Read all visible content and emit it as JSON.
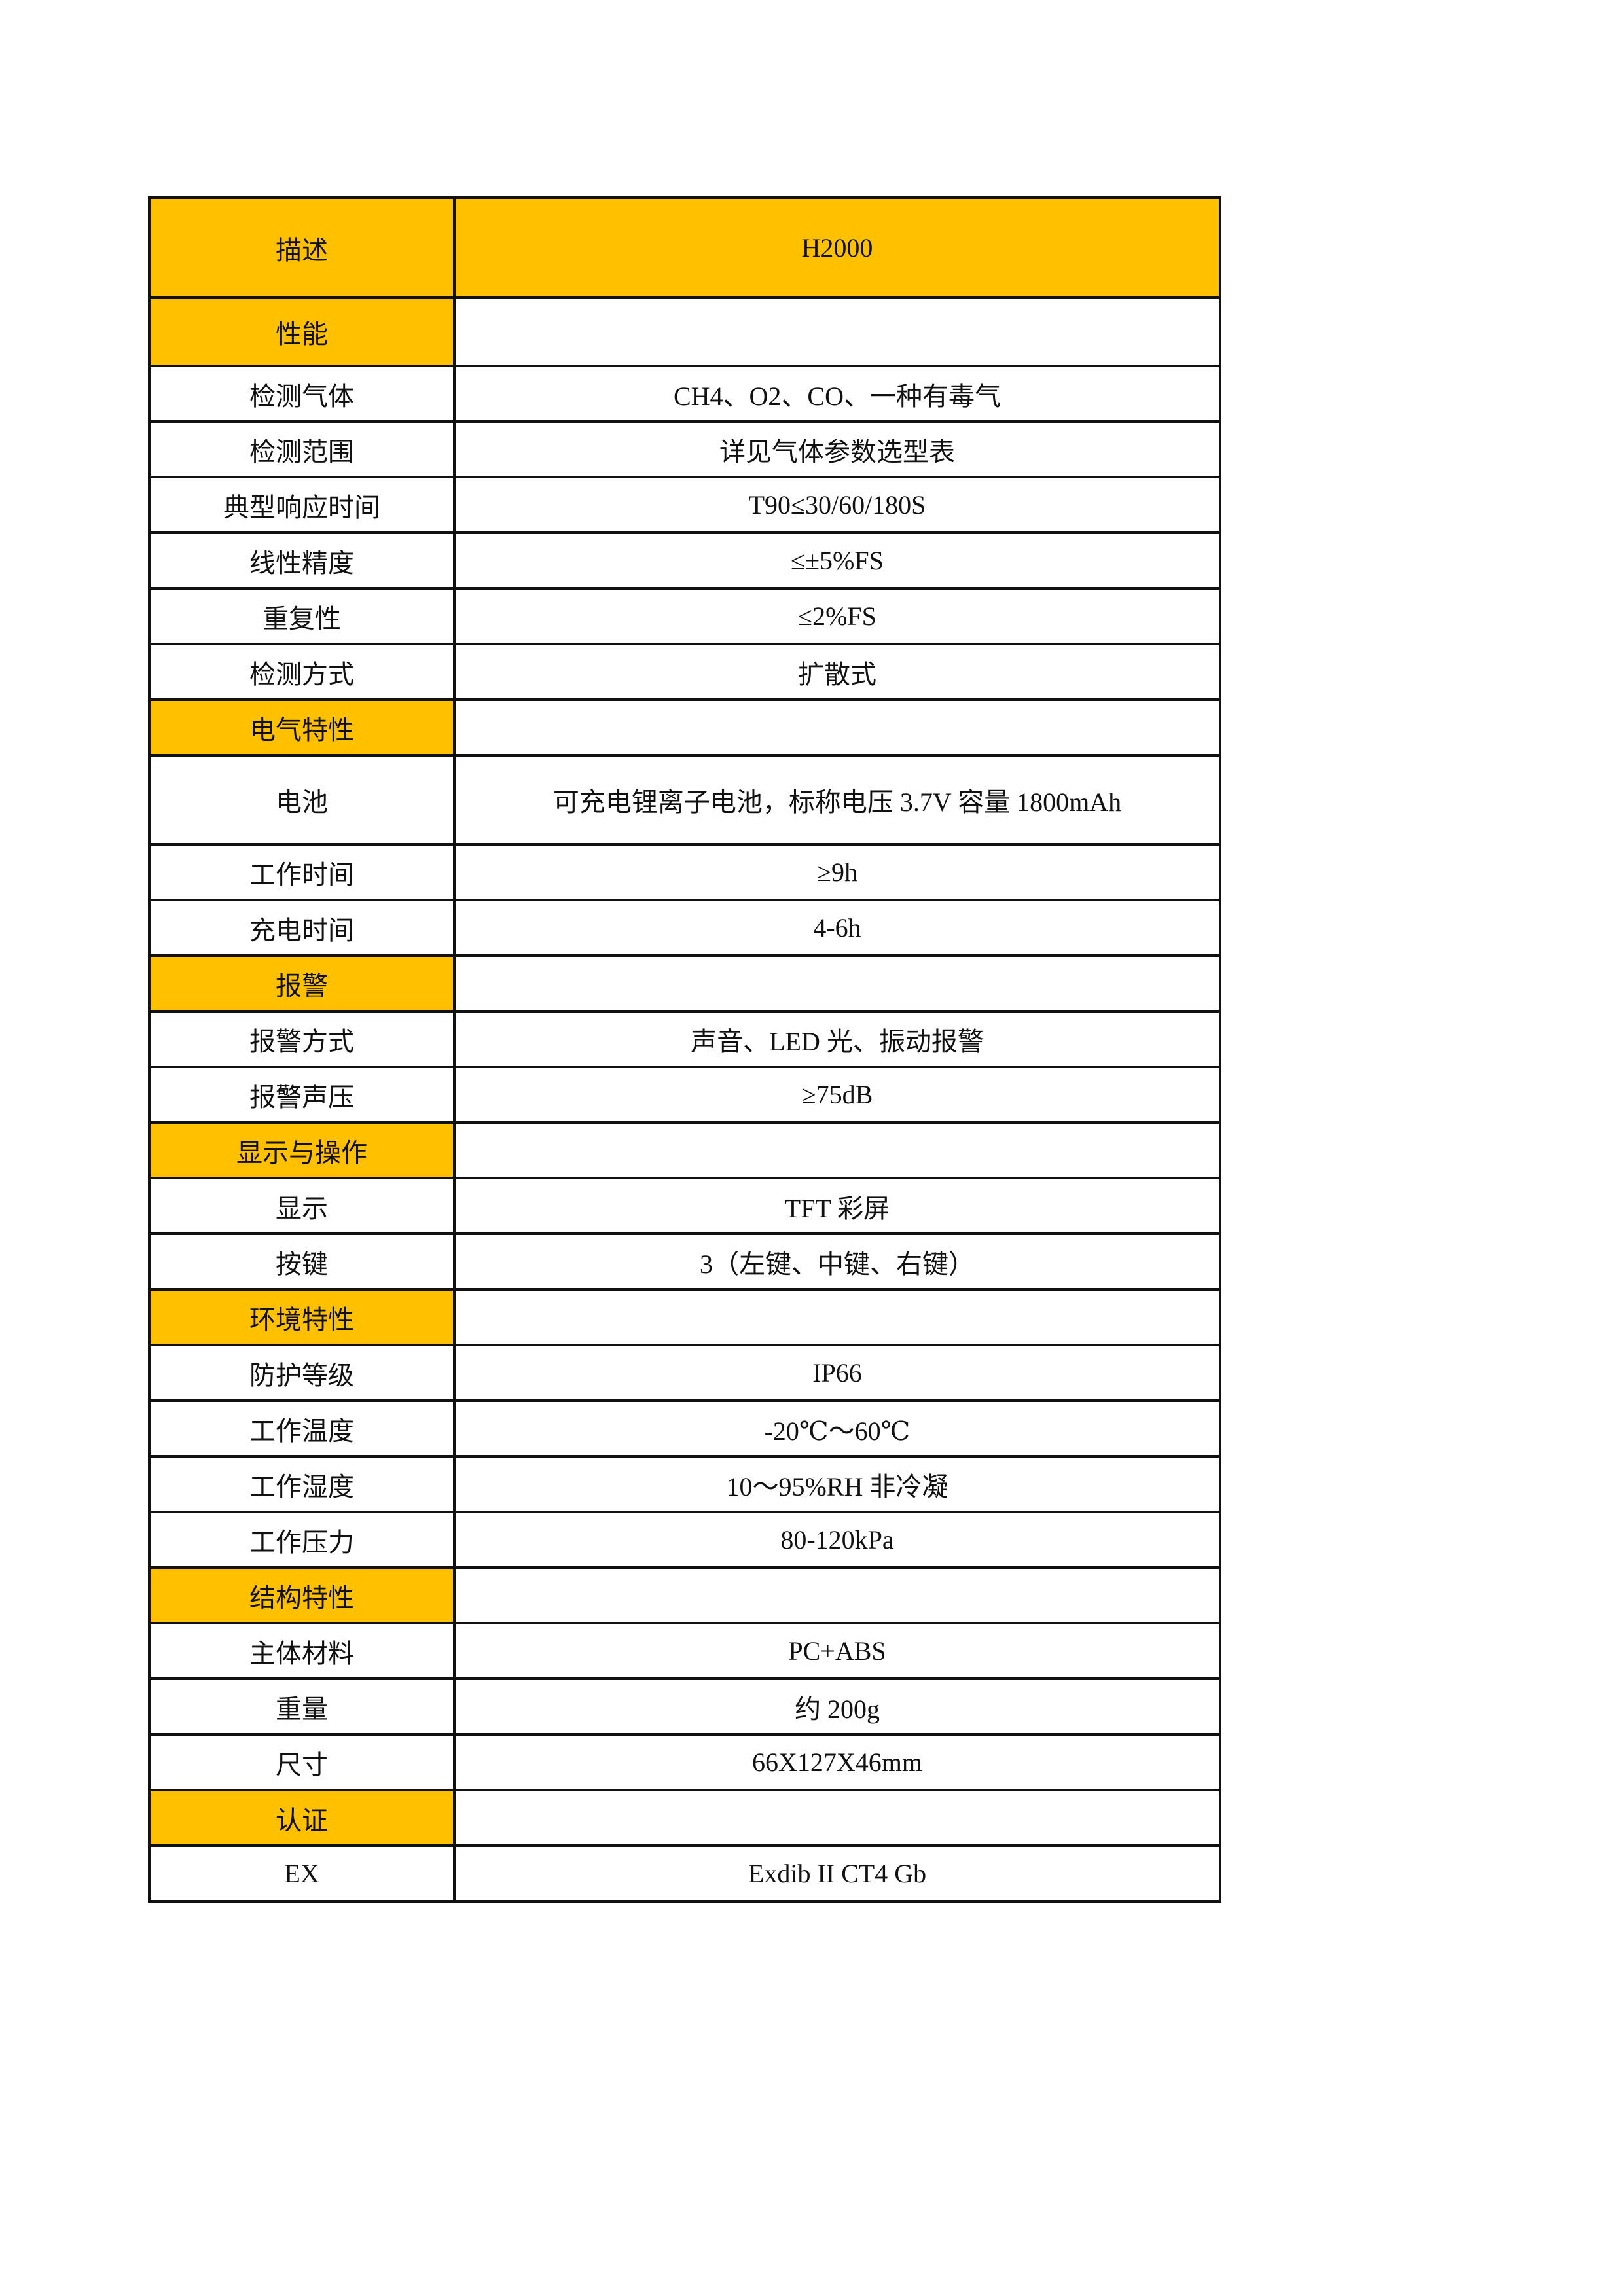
{
  "colors": {
    "section_fill": "#FFC000",
    "border": "#111111"
  },
  "header": {
    "label": "描述",
    "value": "H2000"
  },
  "rows": [
    {
      "label": "性能",
      "value": "",
      "section": true,
      "h": "tall"
    },
    {
      "label": "检测气体",
      "value": "CH4、O2、CO、一种有毒气"
    },
    {
      "label": "检测范围",
      "value": "详见气体参数选型表"
    },
    {
      "label": "典型响应时间",
      "value": "T90≤30/60/180S"
    },
    {
      "label": "线性精度",
      "value": "≤±5%FS"
    },
    {
      "label": "重复性",
      "value": "≤2%FS"
    },
    {
      "label": "检测方式",
      "value": "扩散式"
    },
    {
      "label": "电气特性",
      "value": "",
      "section": true
    },
    {
      "label": "电池",
      "value": "可充电锂离子电池，标称电压 3.7V 容量 1800mAh",
      "h": "battery"
    },
    {
      "label": "工作时间",
      "value": "≥9h"
    },
    {
      "label": "充电时间",
      "value": "4-6h"
    },
    {
      "label": "报警",
      "value": "",
      "section": true
    },
    {
      "label": "报警方式",
      "value": "声音、LED 光、振动报警"
    },
    {
      "label": "报警声压",
      "value": "≥75dB"
    },
    {
      "label": "显示与操作",
      "value": "",
      "section": true
    },
    {
      "label": "显示",
      "value": "TFT 彩屏"
    },
    {
      "label": "按键",
      "value": "3（左键、中键、右键）"
    },
    {
      "label": "环境特性",
      "value": "",
      "section": true
    },
    {
      "label": "防护等级",
      "value": "IP66"
    },
    {
      "label": "工作温度",
      "value": "-20℃～60℃"
    },
    {
      "label": "工作湿度",
      "value": "10～95%RH 非冷凝"
    },
    {
      "label": "工作压力",
      "value": "80-120kPa"
    },
    {
      "label": "结构特性",
      "value": "",
      "section": true
    },
    {
      "label": "主体材料",
      "value": "PC+ABS"
    },
    {
      "label": "重量",
      "value": "约 200g"
    },
    {
      "label": "尺寸",
      "value": "66X127X46mm"
    },
    {
      "label": "认证",
      "value": "",
      "section": true
    },
    {
      "label": "EX",
      "value": "Exdib II CT4 Gb"
    }
  ]
}
